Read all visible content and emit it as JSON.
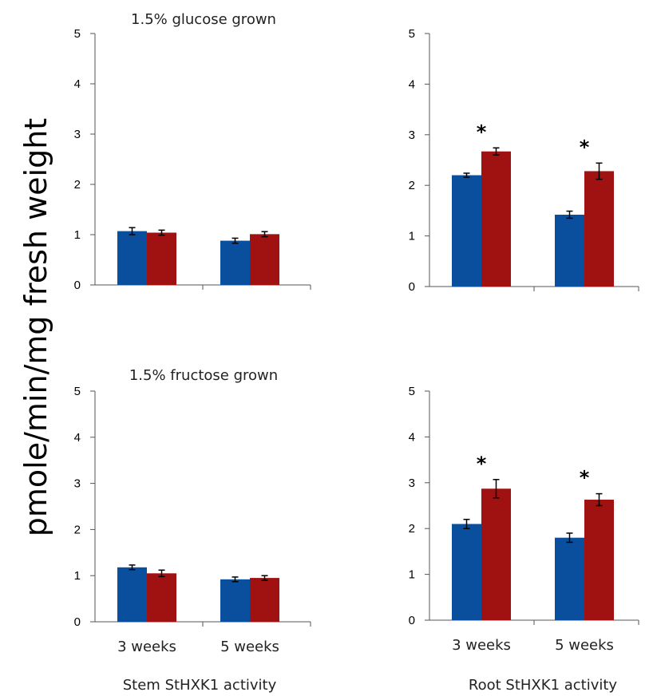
{
  "y_axis_label": "pmole/min/mg fresh weight",
  "x_labels": [
    "Stem StHXK1 activity",
    "Root StHXK1 activity"
  ],
  "colors": {
    "series_a": "#0a4f9e",
    "series_b": "#a01111"
  },
  "chart_data": [
    {
      "type": "bar",
      "panel": "top-left",
      "title": "1.5% glucose grown",
      "categories": [
        "3 weeks",
        "5 weeks"
      ],
      "show_category_labels": false,
      "series": [
        {
          "values": [
            1.07,
            0.88
          ],
          "errors": [
            0.07,
            0.05
          ]
        },
        {
          "values": [
            1.04,
            1.01
          ],
          "errors": [
            0.05,
            0.05
          ]
        }
      ],
      "significance": [],
      "ylim": [
        0,
        5
      ],
      "yticks": [
        "0",
        "1",
        "2",
        "3",
        "4",
        "5"
      ]
    },
    {
      "type": "bar",
      "panel": "top-right",
      "title": "",
      "categories": [
        "3 weeks",
        "5 weeks"
      ],
      "show_category_labels": false,
      "series": [
        {
          "values": [
            2.2,
            1.42
          ],
          "errors": [
            0.04,
            0.07
          ]
        },
        {
          "values": [
            2.67,
            2.28
          ],
          "errors": [
            0.07,
            0.16
          ]
        }
      ],
      "significance": [
        "*",
        "*"
      ],
      "ylim": [
        0,
        5
      ],
      "yticks": [
        "0",
        "1",
        "2",
        "3",
        "4",
        "5"
      ]
    },
    {
      "type": "bar",
      "panel": "bottom-left",
      "title": "1.5% fructose grown",
      "categories": [
        "3 weeks",
        "5 weeks"
      ],
      "show_category_labels": true,
      "series": [
        {
          "values": [
            1.18,
            0.92
          ],
          "errors": [
            0.05,
            0.05
          ]
        },
        {
          "values": [
            1.05,
            0.95
          ],
          "errors": [
            0.07,
            0.05
          ]
        }
      ],
      "significance": [],
      "ylim": [
        0,
        5
      ],
      "yticks": [
        "0",
        "1",
        "2",
        "3",
        "4",
        "5"
      ]
    },
    {
      "type": "bar",
      "panel": "bottom-right",
      "title": "",
      "categories": [
        "3 weeks",
        "5 weeks"
      ],
      "show_category_labels": true,
      "series": [
        {
          "values": [
            2.1,
            1.8
          ],
          "errors": [
            0.1,
            0.1
          ]
        },
        {
          "values": [
            2.87,
            2.63
          ],
          "errors": [
            0.2,
            0.13
          ]
        }
      ],
      "significance": [
        "*",
        "*"
      ],
      "ylim": [
        0,
        5
      ],
      "yticks": [
        "0",
        "1",
        "2",
        "3",
        "4",
        "5"
      ]
    }
  ]
}
